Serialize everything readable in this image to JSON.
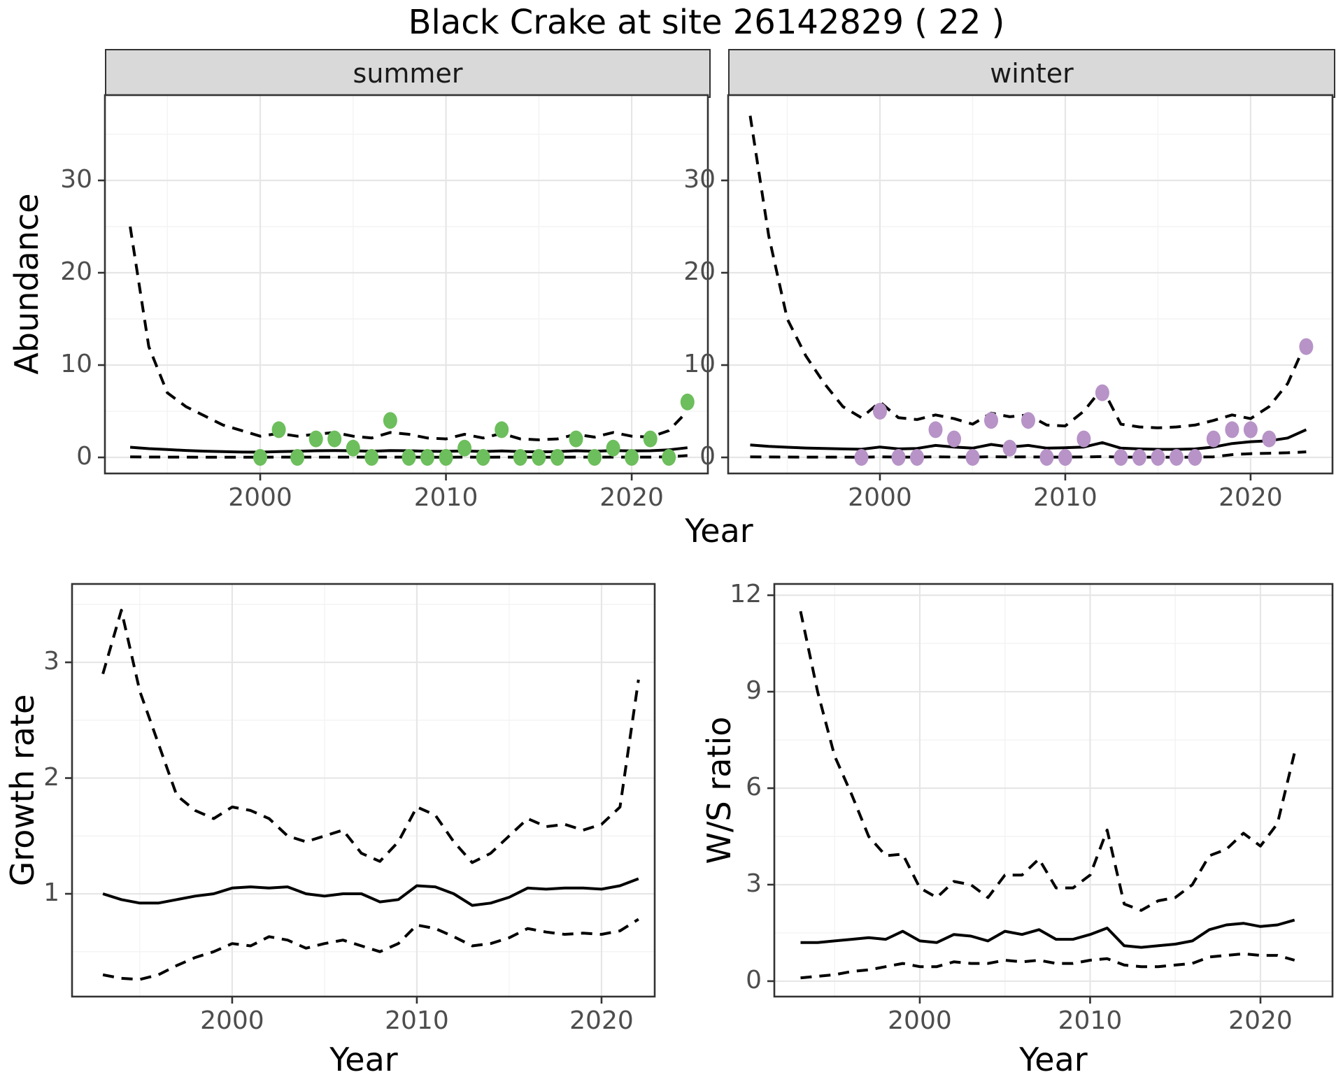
{
  "title": "Black Crake at site 26142829 ( 22 )",
  "facets": {
    "summer": "summer",
    "winter": "winter"
  },
  "axis_labels": {
    "abundance": "Abundance",
    "year": "Year",
    "growth": "Growth rate",
    "ws": "W/S ratio"
  },
  "colors": {
    "summer_point": "#6dbe5c",
    "winter_point": "#b793c7",
    "line": "#000000",
    "grid_major": "#e6e6e6",
    "grid_minor": "#f3f3f3",
    "panel_border": "#333333",
    "strip_bg": "#d9d9d9",
    "tick_text": "#4d4d4d"
  },
  "chart_data": [
    {
      "id": "abundance_summer",
      "type": "line",
      "facet": "summer",
      "ylabel": "Abundance",
      "xlabel": "Year",
      "xlim": [
        1991.64,
        2024.1
      ],
      "ylim": [
        -1.74,
        39.24
      ],
      "x_ticks": [
        2000,
        2010,
        2020
      ],
      "x_minor": [
        1995,
        2005,
        2015
      ],
      "y_ticks": [
        0,
        10,
        20,
        30
      ],
      "y_minor": [
        5,
        15,
        25,
        35
      ],
      "grid": true,
      "legend": "none",
      "years": [
        1993,
        1994,
        1995,
        1996,
        1997,
        1998,
        1999,
        2000,
        2001,
        2002,
        2003,
        2004,
        2005,
        2006,
        2007,
        2008,
        2009,
        2010,
        2011,
        2012,
        2013,
        2014,
        2015,
        2016,
        2017,
        2018,
        2019,
        2020,
        2021,
        2022,
        2023
      ],
      "upper_ci": [
        25.0,
        12.0,
        7.0,
        5.5,
        4.5,
        3.5,
        2.9,
        2.3,
        2.6,
        2.3,
        2.5,
        2.7,
        2.3,
        2.1,
        2.7,
        2.5,
        2.1,
        2.0,
        2.5,
        2.1,
        2.6,
        2.0,
        1.9,
        2.0,
        2.5,
        2.2,
        2.7,
        2.3,
        2.2,
        2.9,
        5.0
      ],
      "mean": [
        1.1,
        0.95,
        0.85,
        0.75,
        0.68,
        0.62,
        0.58,
        0.57,
        0.62,
        0.67,
        0.72,
        0.74,
        0.72,
        0.67,
        0.74,
        0.72,
        0.67,
        0.65,
        0.7,
        0.64,
        0.7,
        0.62,
        0.6,
        0.62,
        0.72,
        0.67,
        0.74,
        0.7,
        0.72,
        0.82,
        1.05
      ],
      "lower_ci": [
        0.06,
        0.04,
        0.03,
        0.03,
        0.02,
        0.02,
        0.02,
        0.02,
        0.03,
        0.03,
        0.03,
        0.03,
        0.03,
        0.03,
        0.03,
        0.03,
        0.02,
        0.02,
        0.03,
        0.02,
        0.03,
        0.02,
        0.02,
        0.02,
        0.03,
        0.03,
        0.03,
        0.03,
        0.03,
        0.06,
        0.2
      ],
      "points_years": [
        2000,
        2001,
        2002,
        2003,
        2004,
        2005,
        2006,
        2007,
        2008,
        2009,
        2010,
        2011,
        2012,
        2013,
        2014,
        2015,
        2016,
        2017,
        2018,
        2019,
        2020,
        2021,
        2022,
        2023
      ],
      "points_values": [
        0,
        3,
        0,
        2,
        2,
        1,
        0,
        4,
        0,
        0,
        0,
        1,
        0,
        3,
        0,
        0,
        0,
        2,
        0,
        1,
        0,
        2,
        0,
        6
      ],
      "point_color": "#6dbe5c"
    },
    {
      "id": "abundance_winter",
      "type": "line",
      "facet": "winter",
      "ylabel": "Abundance",
      "xlabel": "Year",
      "xlim": [
        1991.81,
        2024.42
      ],
      "ylim": [
        -1.74,
        39.24
      ],
      "x_ticks": [
        2000,
        2010,
        2020
      ],
      "x_minor": [
        1995,
        2005,
        2015
      ],
      "y_ticks": [
        0,
        10,
        20,
        30
      ],
      "y_minor": [
        5,
        15,
        25,
        35
      ],
      "grid": true,
      "legend": "none",
      "years": [
        1993,
        1994,
        1995,
        1996,
        1997,
        1998,
        1999,
        2000,
        2001,
        2002,
        2003,
        2004,
        2005,
        2006,
        2007,
        2008,
        2009,
        2010,
        2011,
        2012,
        2013,
        2014,
        2015,
        2016,
        2017,
        2018,
        2019,
        2020,
        2021,
        2022,
        2023
      ],
      "upper_ci": [
        37,
        24,
        15,
        11,
        8,
        5.5,
        4.3,
        6.0,
        4.3,
        4.1,
        4.6,
        4.2,
        3.6,
        4.8,
        4.4,
        4.6,
        3.5,
        3.4,
        5.0,
        7.5,
        3.6,
        3.3,
        3.2,
        3.3,
        3.5,
        4.0,
        4.6,
        4.2,
        5.5,
        8.0,
        12.5
      ],
      "mean": [
        1.35,
        1.2,
        1.1,
        1.02,
        0.97,
        0.92,
        0.88,
        1.12,
        0.92,
        0.97,
        1.3,
        1.12,
        1.0,
        1.4,
        1.12,
        1.3,
        1.0,
        1.05,
        1.12,
        1.6,
        1.0,
        0.92,
        0.87,
        0.87,
        0.92,
        1.12,
        1.5,
        1.7,
        1.8,
        2.1,
        3.0
      ],
      "lower_ci": [
        0.06,
        0.05,
        0.04,
        0.03,
        0.03,
        0.03,
        0.02,
        0.06,
        0.03,
        0.03,
        0.06,
        0.04,
        0.03,
        0.07,
        0.05,
        0.06,
        0.03,
        0.03,
        0.05,
        0.09,
        0.03,
        0.03,
        0.02,
        0.02,
        0.03,
        0.06,
        0.3,
        0.4,
        0.45,
        0.5,
        0.6
      ],
      "points_years": [
        1999,
        2000,
        2001,
        2002,
        2003,
        2004,
        2005,
        2006,
        2007,
        2008,
        2009,
        2010,
        2011,
        2012,
        2013,
        2014,
        2015,
        2016,
        2017,
        2018,
        2019,
        2020,
        2021,
        2023
      ],
      "points_values": [
        0,
        5,
        0,
        0,
        3,
        2,
        0,
        4,
        1,
        4,
        0,
        0,
        2,
        7,
        0,
        0,
        0,
        0,
        0,
        2,
        3,
        3,
        2,
        12
      ],
      "point_color": "#b793c7"
    },
    {
      "id": "growth",
      "type": "line",
      "facet": "",
      "ylabel": "Growth rate",
      "xlabel": "Year",
      "xlim": [
        1991.33,
        2022.88
      ],
      "ylim": [
        0.112,
        3.677
      ],
      "x_ticks": [
        2000,
        2010,
        2020
      ],
      "x_minor": [
        1995,
        2005,
        2015
      ],
      "y_ticks": [
        1,
        2,
        3
      ],
      "y_minor": [
        0.5,
        1.5,
        2.5,
        3.5
      ],
      "grid": true,
      "legend": "none",
      "years": [
        1993,
        1994,
        1995,
        1996,
        1997,
        1998,
        1999,
        2000,
        2001,
        2002,
        2003,
        2004,
        2005,
        2006,
        2007,
        2008,
        2009,
        2010,
        2011,
        2012,
        2013,
        2014,
        2015,
        2016,
        2017,
        2018,
        2019,
        2020,
        2021,
        2022
      ],
      "upper_ci": [
        2.9,
        3.45,
        2.75,
        2.3,
        1.85,
        1.72,
        1.65,
        1.75,
        1.72,
        1.65,
        1.5,
        1.45,
        1.5,
        1.55,
        1.35,
        1.28,
        1.45,
        1.75,
        1.68,
        1.45,
        1.27,
        1.35,
        1.5,
        1.65,
        1.58,
        1.6,
        1.55,
        1.6,
        1.75,
        2.85
      ],
      "mean": [
        1.0,
        0.95,
        0.92,
        0.92,
        0.95,
        0.98,
        1.0,
        1.05,
        1.06,
        1.05,
        1.06,
        1.0,
        0.98,
        1.0,
        1.0,
        0.93,
        0.95,
        1.07,
        1.06,
        1.0,
        0.9,
        0.92,
        0.97,
        1.05,
        1.04,
        1.05,
        1.05,
        1.04,
        1.07,
        1.13
      ],
      "lower_ci": [
        0.3,
        0.27,
        0.26,
        0.3,
        0.38,
        0.45,
        0.5,
        0.57,
        0.55,
        0.63,
        0.6,
        0.53,
        0.57,
        0.6,
        0.55,
        0.5,
        0.57,
        0.73,
        0.7,
        0.63,
        0.55,
        0.57,
        0.62,
        0.7,
        0.67,
        0.65,
        0.66,
        0.65,
        0.68,
        0.78
      ],
      "points_years": [],
      "points_values": [],
      "point_color": "#000000"
    },
    {
      "id": "ws",
      "type": "line",
      "facet": "",
      "ylabel": "W/S ratio",
      "xlabel": "Year",
      "xlim": [
        1991.46,
        2024.23
      ],
      "ylim": [
        -0.48,
        12.35
      ],
      "x_ticks": [
        2000,
        2010,
        2020
      ],
      "x_minor": [
        1995,
        2005,
        2015
      ],
      "y_ticks": [
        0,
        3,
        6,
        9,
        12
      ],
      "y_minor": [
        1.5,
        4.5,
        7.5,
        10.5
      ],
      "grid": true,
      "legend": "none",
      "years": [
        1993,
        1994,
        1995,
        1996,
        1997,
        1998,
        1999,
        2000,
        2001,
        2002,
        2003,
        2004,
        2005,
        2006,
        2007,
        2008,
        2009,
        2010,
        2011,
        2012,
        2013,
        2014,
        2015,
        2016,
        2017,
        2018,
        2019,
        2020,
        2021,
        2022
      ],
      "upper_ci": [
        11.5,
        9.0,
        7.0,
        5.8,
        4.5,
        3.9,
        3.95,
        2.9,
        2.6,
        3.1,
        3.0,
        2.6,
        3.3,
        3.3,
        3.8,
        2.9,
        2.9,
        3.3,
        4.7,
        2.4,
        2.2,
        2.5,
        2.6,
        3.0,
        3.9,
        4.1,
        4.6,
        4.2,
        4.9,
        7.1
      ],
      "mean": [
        1.2,
        1.2,
        1.25,
        1.3,
        1.35,
        1.3,
        1.55,
        1.25,
        1.2,
        1.45,
        1.4,
        1.25,
        1.55,
        1.45,
        1.6,
        1.3,
        1.3,
        1.45,
        1.65,
        1.1,
        1.05,
        1.1,
        1.15,
        1.25,
        1.6,
        1.75,
        1.8,
        1.7,
        1.75,
        1.9
      ],
      "lower_ci": [
        0.1,
        0.15,
        0.2,
        0.3,
        0.35,
        0.45,
        0.55,
        0.45,
        0.45,
        0.6,
        0.55,
        0.55,
        0.65,
        0.6,
        0.65,
        0.55,
        0.55,
        0.65,
        0.7,
        0.5,
        0.45,
        0.45,
        0.5,
        0.55,
        0.75,
        0.8,
        0.85,
        0.8,
        0.8,
        0.65
      ],
      "points_years": [],
      "points_values": [],
      "point_color": "#000000"
    }
  ]
}
